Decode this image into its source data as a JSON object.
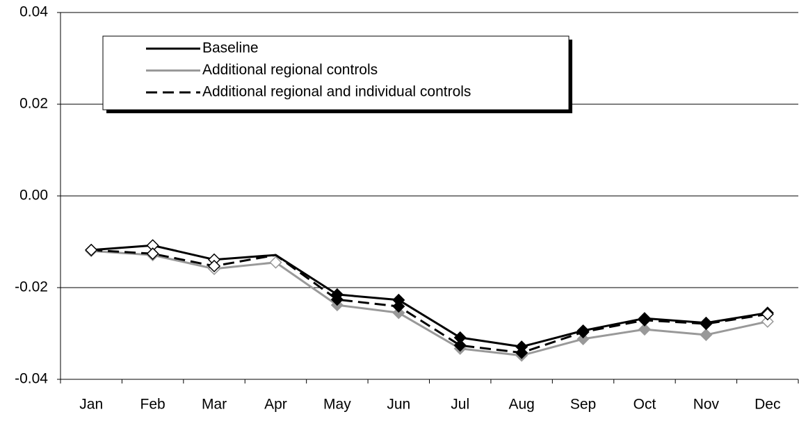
{
  "chart_data": {
    "type": "line",
    "categories": [
      "Jan",
      "Feb",
      "Mar",
      "Apr",
      "May",
      "Jun",
      "Jul",
      "Aug",
      "Sep",
      "Oct",
      "Nov",
      "Dec"
    ],
    "ylim": [
      -0.04,
      0.04
    ],
    "yticks": [
      -0.04,
      -0.02,
      {
        "value": 0,
        "label": "0.00"
      },
      0.02,
      0.04
    ],
    "grid": true,
    "legend": "top-left",
    "series": [
      {
        "name": "Baseline",
        "color": "#000000",
        "dash": "solid",
        "values": [
          -0.0118,
          -0.0108,
          -0.0139,
          -0.0129,
          -0.0215,
          -0.0227,
          -0.0309,
          -0.0329,
          -0.0294,
          -0.0267,
          -0.0277,
          -0.0255
        ],
        "markers": [
          "open",
          "open",
          "open",
          null,
          "filled",
          "filled",
          "filled",
          "filled",
          "filled",
          "filled",
          "filled",
          "open"
        ]
      },
      {
        "name": "Additional regional controls",
        "color": "#999999",
        "dash": "solid",
        "values": [
          -0.012,
          -0.0129,
          -0.0159,
          -0.0145,
          -0.0238,
          -0.0255,
          -0.0333,
          -0.0348,
          -0.0312,
          -0.0291,
          -0.0303,
          -0.0274
        ],
        "markers": [
          "open",
          "open",
          "open",
          "open",
          "filled",
          "filled",
          "filled",
          "filled",
          "filled",
          "filled",
          "filled",
          "open"
        ]
      },
      {
        "name": "Additional regional and individual controls",
        "color": "#000000",
        "dash": "dashed",
        "values": [
          -0.0118,
          -0.0126,
          -0.0153,
          -0.0129,
          -0.0226,
          -0.0241,
          -0.0326,
          -0.0342,
          -0.0297,
          -0.0271,
          -0.0279,
          -0.0258
        ],
        "markers": [
          "open",
          "open",
          "open",
          null,
          "filled",
          "filled",
          "filled",
          "filled",
          "filled",
          "filled",
          "filled",
          "open"
        ]
      }
    ]
  }
}
